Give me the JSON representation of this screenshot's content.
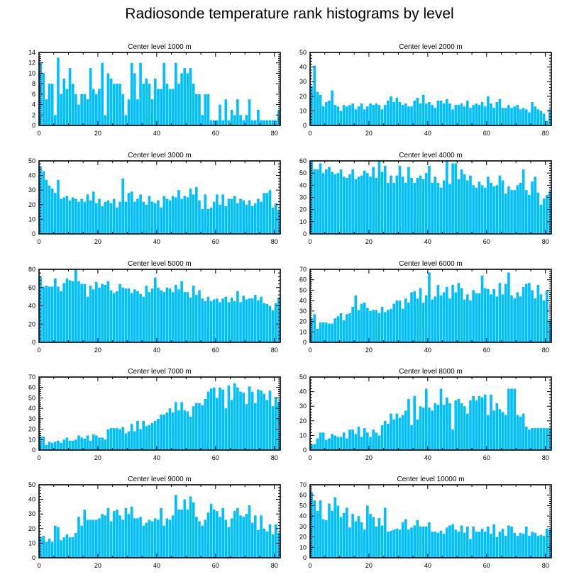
{
  "title": "Radiosonde temperature rank histograms by level",
  "colors": {
    "bar": "#00bfff",
    "frame": "#000000"
  },
  "chart_data": [
    {
      "type": "bar",
      "title": "Center level 1000 m",
      "xlim": [
        0,
        82
      ],
      "ylim": [
        0,
        14
      ],
      "xticks": [
        0,
        20,
        40,
        60,
        80
      ],
      "yticks": [
        0,
        2,
        4,
        6,
        8,
        10,
        12,
        14
      ],
      "values": [
        12,
        10,
        5,
        8,
        8,
        2,
        13,
        6,
        9,
        7,
        11,
        8,
        6,
        4,
        6,
        6,
        5,
        11,
        7,
        6,
        7,
        12,
        2,
        10,
        9,
        8,
        8,
        8,
        6,
        2,
        5,
        12,
        10,
        5,
        12,
        8,
        9,
        8,
        5,
        9,
        7,
        7,
        12,
        8,
        7,
        7,
        12,
        8,
        10,
        11,
        10,
        11,
        8,
        6,
        6,
        2,
        6,
        6,
        1,
        1,
        1,
        4,
        1,
        5,
        1,
        3,
        2,
        5,
        2,
        1,
        2,
        5,
        1,
        1,
        3,
        1,
        1,
        1,
        1,
        1,
        1,
        3
      ]
    },
    {
      "type": "bar",
      "title": "Center level 2000 m",
      "xlim": [
        0,
        82
      ],
      "ylim": [
        0,
        50
      ],
      "xticks": [
        0,
        20,
        40,
        60,
        80
      ],
      "yticks": [
        0,
        10,
        20,
        30,
        40,
        50
      ],
      "values": [
        27,
        41,
        23,
        21,
        13,
        16,
        17,
        24,
        14,
        13,
        10,
        14,
        13,
        14,
        15,
        11,
        13,
        15,
        11,
        13,
        15,
        14,
        15,
        14,
        11,
        14,
        17,
        20,
        16,
        19,
        16,
        14,
        15,
        13,
        13,
        17,
        19,
        15,
        21,
        15,
        16,
        14,
        12,
        17,
        17,
        15,
        18,
        15,
        11,
        14,
        14,
        15,
        13,
        17,
        12,
        14,
        15,
        14,
        16,
        13,
        20,
        15,
        12,
        16,
        18,
        12,
        12,
        14,
        12,
        13,
        14,
        11,
        12,
        11,
        9,
        16,
        13,
        11,
        10,
        8,
        3,
        11
      ]
    },
    {
      "type": "bar",
      "title": "Center level 3000 m",
      "xlim": [
        0,
        82
      ],
      "ylim": [
        0,
        50
      ],
      "xticks": [
        0,
        20,
        40,
        60,
        80
      ],
      "yticks": [
        0,
        10,
        20,
        30,
        40,
        50
      ],
      "values": [
        46,
        43,
        37,
        33,
        31,
        28,
        37,
        24,
        25,
        26,
        23,
        25,
        24,
        22,
        24,
        22,
        27,
        23,
        29,
        21,
        24,
        19,
        22,
        23,
        21,
        24,
        18,
        22,
        38,
        22,
        28,
        29,
        22,
        24,
        27,
        22,
        20,
        26,
        22,
        21,
        23,
        18,
        26,
        24,
        23,
        26,
        25,
        30,
        24,
        26,
        25,
        31,
        27,
        32,
        23,
        17,
        27,
        17,
        18,
        22,
        27,
        20,
        27,
        19,
        24,
        24,
        26,
        21,
        24,
        23,
        20,
        23,
        19,
        21,
        24,
        22,
        28,
        28,
        30,
        18,
        21,
        16
      ]
    },
    {
      "type": "bar",
      "title": "Center level 4000 m",
      "xlim": [
        0,
        82
      ],
      "ylim": [
        0,
        60
      ],
      "xticks": [
        0,
        20,
        40,
        60,
        80
      ],
      "yticks": [
        0,
        10,
        20,
        30,
        40,
        50,
        60
      ],
      "values": [
        61,
        53,
        53,
        58,
        50,
        53,
        55,
        51,
        49,
        50,
        53,
        47,
        46,
        49,
        53,
        45,
        47,
        48,
        52,
        50,
        47,
        55,
        46,
        61,
        51,
        56,
        42,
        48,
        42,
        48,
        56,
        47,
        42,
        55,
        46,
        42,
        46,
        48,
        45,
        50,
        56,
        42,
        47,
        42,
        38,
        44,
        60,
        41,
        58,
        58,
        45,
        53,
        49,
        44,
        48,
        40,
        38,
        43,
        40,
        38,
        47,
        42,
        39,
        40,
        48,
        44,
        33,
        39,
        36,
        36,
        40,
        42,
        53,
        36,
        32,
        43,
        47,
        34,
        24,
        29,
        32,
        35
      ]
    },
    {
      "type": "bar",
      "title": "Center level 5000 m",
      "xlim": [
        0,
        82
      ],
      "ylim": [
        0,
        80
      ],
      "xticks": [
        0,
        20,
        40,
        60,
        80
      ],
      "yticks": [
        0,
        20,
        40,
        60,
        80
      ],
      "values": [
        72,
        61,
        62,
        61,
        61,
        70,
        61,
        56,
        65,
        70,
        68,
        67,
        80,
        67,
        64,
        64,
        50,
        62,
        58,
        66,
        60,
        64,
        63,
        67,
        57,
        54,
        56,
        64,
        60,
        59,
        59,
        54,
        58,
        56,
        53,
        50,
        62,
        55,
        59,
        71,
        60,
        57,
        55,
        60,
        59,
        55,
        63,
        58,
        67,
        55,
        55,
        49,
        62,
        52,
        57,
        48,
        45,
        50,
        45,
        47,
        48,
        44,
        48,
        50,
        44,
        49,
        45,
        56,
        44,
        51,
        47,
        48,
        48,
        52,
        46,
        50,
        43,
        42,
        40,
        35,
        43,
        49
      ]
    },
    {
      "type": "bar",
      "title": "Center level 6000 m",
      "xlim": [
        0,
        82
      ],
      "ylim": [
        0,
        70
      ],
      "xticks": [
        0,
        20,
        40,
        60,
        80
      ],
      "yticks": [
        0,
        10,
        20,
        30,
        40,
        50,
        60,
        70
      ],
      "values": [
        23,
        27,
        13,
        19,
        19,
        19,
        18,
        18,
        23,
        25,
        28,
        21,
        27,
        28,
        34,
        45,
        31,
        37,
        38,
        33,
        30,
        31,
        31,
        28,
        34,
        29,
        31,
        32,
        37,
        40,
        40,
        32,
        42,
        38,
        48,
        49,
        42,
        52,
        38,
        45,
        67,
        41,
        44,
        55,
        45,
        48,
        53,
        42,
        55,
        48,
        57,
        52,
        41,
        46,
        40,
        50,
        47,
        47,
        64,
        52,
        51,
        46,
        51,
        44,
        57,
        46,
        56,
        67,
        45,
        42,
        48,
        44,
        53,
        56,
        57,
        50,
        42,
        55,
        46,
        40,
        50,
        21
      ]
    },
    {
      "type": "bar",
      "title": "Center level 7000 m",
      "xlim": [
        0,
        82
      ],
      "ylim": [
        0,
        70
      ],
      "xticks": [
        0,
        20,
        40,
        60,
        80
      ],
      "yticks": [
        0,
        10,
        20,
        30,
        40,
        50,
        60,
        70
      ],
      "values": [
        13,
        13,
        5,
        8,
        7,
        8,
        9,
        7,
        10,
        12,
        9,
        9,
        10,
        14,
        12,
        11,
        14,
        9,
        15,
        14,
        12,
        12,
        10,
        20,
        21,
        21,
        21,
        20,
        22,
        16,
        18,
        25,
        18,
        28,
        20,
        28,
        23,
        24,
        26,
        28,
        30,
        34,
        34,
        36,
        40,
        36,
        46,
        38,
        46,
        38,
        37,
        32,
        42,
        45,
        45,
        43,
        49,
        56,
        59,
        60,
        50,
        60,
        58,
        40,
        62,
        48,
        64,
        60,
        56,
        55,
        44,
        61,
        56,
        45,
        58,
        57,
        54,
        48,
        57,
        42,
        51,
        46
      ]
    },
    {
      "type": "bar",
      "title": "Center level 8000 m",
      "xlim": [
        0,
        82
      ],
      "ylim": [
        0,
        50
      ],
      "xticks": [
        0,
        20,
        40,
        60,
        80
      ],
      "yticks": [
        0,
        10,
        20,
        30,
        40,
        50
      ],
      "values": [
        4,
        4,
        8,
        12,
        12,
        7,
        8,
        11,
        10,
        9,
        9,
        12,
        8,
        14,
        14,
        11,
        16,
        9,
        15,
        12,
        9,
        14,
        12,
        10,
        17,
        20,
        18,
        25,
        21,
        25,
        22,
        24,
        27,
        35,
        17,
        37,
        21,
        30,
        29,
        42,
        29,
        27,
        32,
        31,
        42,
        31,
        36,
        32,
        14,
        34,
        35,
        32,
        30,
        25,
        34,
        37,
        34,
        37,
        36,
        38,
        24,
        38,
        27,
        32,
        28,
        26,
        24,
        42,
        42,
        42,
        24,
        23,
        25,
        16,
        14,
        15,
        15,
        15,
        15,
        15,
        15,
        15
      ]
    },
    {
      "type": "bar",
      "title": "Center level 9000 m",
      "xlim": [
        0,
        82
      ],
      "ylim": [
        0,
        50
      ],
      "xticks": [
        0,
        20,
        40,
        60,
        80
      ],
      "yticks": [
        0,
        10,
        20,
        30,
        40,
        50
      ],
      "values": [
        14,
        15,
        11,
        13,
        11,
        22,
        21,
        12,
        14,
        16,
        14,
        14,
        17,
        28,
        22,
        33,
        26,
        26,
        26,
        26,
        27,
        30,
        29,
        34,
        25,
        32,
        33,
        29,
        26,
        34,
        30,
        35,
        27,
        27,
        28,
        22,
        24,
        26,
        25,
        27,
        26,
        34,
        22,
        27,
        26,
        29,
        43,
        33,
        33,
        40,
        33,
        42,
        38,
        28,
        25,
        22,
        26,
        31,
        37,
        33,
        32,
        28,
        34,
        26,
        21,
        27,
        32,
        34,
        29,
        28,
        30,
        36,
        24,
        29,
        19,
        29,
        20,
        18,
        23,
        16,
        23,
        17
      ]
    },
    {
      "type": "bar",
      "title": "Center level 10000 m",
      "xlim": [
        0,
        82
      ],
      "ylim": [
        0,
        70
      ],
      "xticks": [
        0,
        20,
        40,
        60,
        80
      ],
      "yticks": [
        0,
        10,
        20,
        30,
        40,
        50,
        60,
        70
      ],
      "values": [
        63,
        55,
        45,
        55,
        37,
        36,
        52,
        45,
        58,
        50,
        39,
        43,
        48,
        29,
        42,
        35,
        40,
        34,
        27,
        50,
        42,
        39,
        30,
        38,
        31,
        48,
        25,
        26,
        27,
        28,
        27,
        34,
        37,
        27,
        29,
        31,
        36,
        30,
        30,
        30,
        34,
        25,
        25,
        24,
        26,
        23,
        29,
        31,
        32,
        27,
        25,
        31,
        24,
        30,
        18,
        30,
        25,
        25,
        28,
        25,
        30,
        23,
        32,
        20,
        25,
        28,
        21,
        31,
        30,
        24,
        21,
        24,
        23,
        30,
        21,
        25,
        24,
        21,
        22,
        21,
        28,
        27
      ]
    }
  ]
}
